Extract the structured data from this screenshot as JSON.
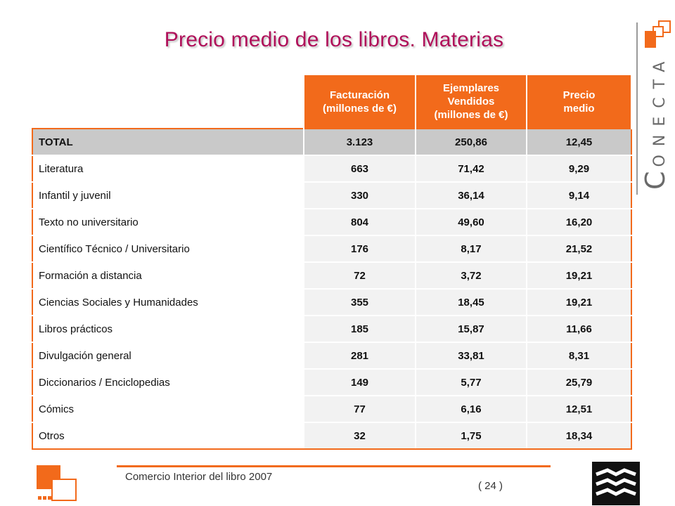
{
  "title": "Precio medio de los libros. Materias",
  "brand": {
    "initial": "C",
    "rest": "ONECTA"
  },
  "table": {
    "headers": [
      "",
      "Facturación (millones de €)",
      "Ejemplares Vendidos (millones de €)",
      "Precio medio"
    ],
    "header_lines": {
      "h1": [
        "Facturación",
        "(millones de €)"
      ],
      "h2": [
        "Ejemplares",
        "Vendidos",
        "(millones de €)"
      ],
      "h3": [
        "Precio",
        "medio"
      ]
    },
    "total": {
      "label": "TOTAL",
      "facturacion": "3.123",
      "ejemplares": "250,86",
      "precio": "12,45"
    },
    "rows": [
      {
        "label": "Literatura",
        "facturacion": "663",
        "ejemplares": "71,42",
        "precio": "9,29"
      },
      {
        "label": "Infantil y juvenil",
        "facturacion": "330",
        "ejemplares": "36,14",
        "precio": "9,14"
      },
      {
        "label": "Texto no universitario",
        "facturacion": "804",
        "ejemplares": "49,60",
        "precio": "16,20"
      },
      {
        "label": "Científico Técnico / Universitario",
        "facturacion": "176",
        "ejemplares": "8,17",
        "precio": "21,52"
      },
      {
        "label": "Formación a distancia",
        "facturacion": "72",
        "ejemplares": "3,72",
        "precio": "19,21"
      },
      {
        "label": "Ciencias Sociales y Humanidades",
        "facturacion": "355",
        "ejemplares": "18,45",
        "precio": "19,21"
      },
      {
        "label": "Libros prácticos",
        "facturacion": "185",
        "ejemplares": "15,87",
        "precio": "11,66"
      },
      {
        "label": "Divulgación general",
        "facturacion": "281",
        "ejemplares": "33,81",
        "precio": "8,31"
      },
      {
        "label": "Diccionarios / Enciclopedias",
        "facturacion": "149",
        "ejemplares": "5,77",
        "precio": "25,79"
      },
      {
        "label": "Cómics",
        "facturacion": "77",
        "ejemplares": "6,16",
        "precio": "12,51"
      },
      {
        "label": "Otros",
        "facturacion": "32",
        "ejemplares": "1,75",
        "precio": "18,34"
      }
    ]
  },
  "footer": {
    "text": "Comercio Interior del libro 2007",
    "page": "( 24 )"
  },
  "colors": {
    "accent": "#f26a1b",
    "title": "#b0105a",
    "total_row": "#c9c9c9"
  }
}
